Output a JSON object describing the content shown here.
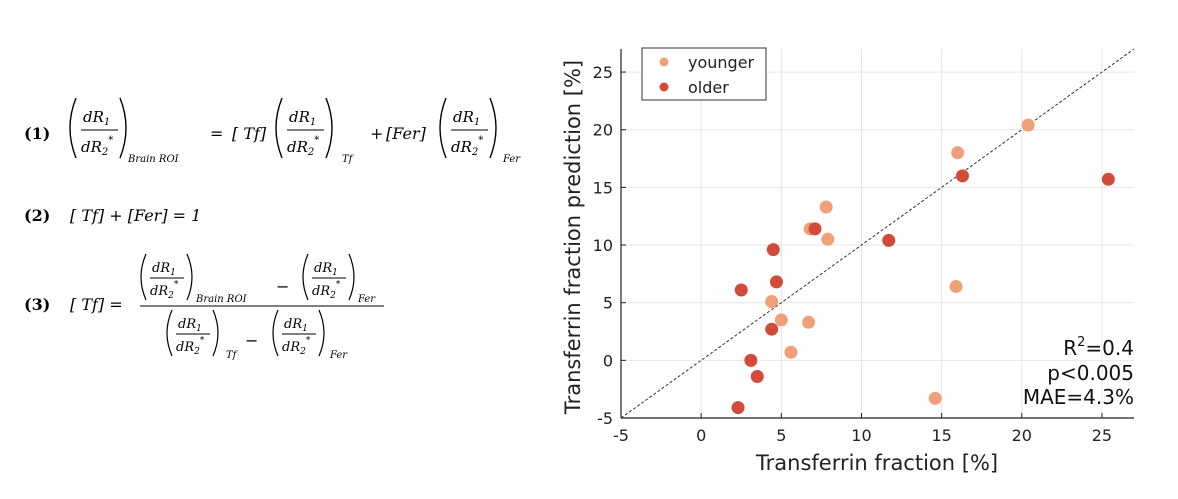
{
  "equations": {
    "eq1_num": "(1)",
    "eq2_num": "(2)",
    "eq3_num": "(3)",
    "dR1": "dR",
    "sub1": "1",
    "dR2": "dR",
    "sub2": "2",
    "star": "*",
    "brain_roi": "Brain ROI",
    "tf_sub": "Tf",
    "fer_sub": "Fer",
    "equals": "=",
    "plus": "+",
    "minus": "−",
    "tf_bracket": "[ Tf]",
    "fer_bracket": "[Fer]",
    "eq2_text": "[ Tf] + [Fer] = 1",
    "eq3_lhs": "[ Tf] ="
  },
  "chart_data": {
    "type": "scatter",
    "xlabel": "Transferrin fraction [%]",
    "ylabel": "Transferrin fraction prediction [%]",
    "xlim": [
      -5,
      27
    ],
    "ylim": [
      -5,
      27
    ],
    "xticks": [
      -5,
      0,
      5,
      10,
      15,
      20,
      25
    ],
    "yticks": [
      -5,
      0,
      5,
      10,
      15,
      20,
      25
    ],
    "grid": true,
    "legend_position": "top-left",
    "identity_line": true,
    "series": [
      {
        "name": "younger",
        "color": "#f0a078",
        "points": [
          [
            20.4,
            20.4
          ],
          [
            16.0,
            18.0
          ],
          [
            7.8,
            13.3
          ],
          [
            6.8,
            11.4
          ],
          [
            7.9,
            10.5
          ],
          [
            15.9,
            6.4
          ],
          [
            4.4,
            5.1
          ],
          [
            5.0,
            3.5
          ],
          [
            6.7,
            3.3
          ],
          [
            5.6,
            0.7
          ],
          [
            14.6,
            -3.3
          ]
        ]
      },
      {
        "name": "older",
        "color": "#d24a3a",
        "points": [
          [
            16.3,
            16.0
          ],
          [
            25.4,
            15.7
          ],
          [
            7.1,
            11.4
          ],
          [
            11.7,
            10.4
          ],
          [
            4.5,
            9.6
          ],
          [
            4.7,
            6.8
          ],
          [
            2.5,
            6.1
          ],
          [
            4.4,
            2.7
          ],
          [
            3.1,
            0.0
          ],
          [
            3.5,
            -1.4
          ],
          [
            2.3,
            -4.1
          ]
        ]
      }
    ],
    "annotations": {
      "r2_label": "R",
      "r2_sup": "2",
      "r2_value": "=0.4",
      "p_value": "p<0.005",
      "mae": "MAE=4.3%"
    }
  }
}
